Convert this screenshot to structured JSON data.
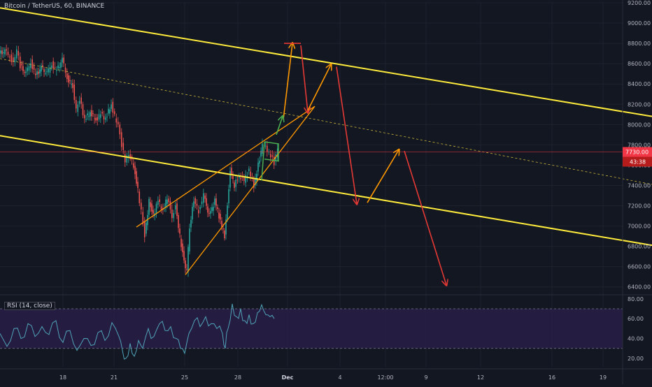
{
  "header": {
    "title": "Bitcoin / TetherUS, 60, BINANCE"
  },
  "colors": {
    "background": "#131722",
    "grid": "#1e222d",
    "channel": "#ffeb3b",
    "midline": "#c9b53a",
    "wedge": "#ff9800",
    "flag": "#4caf50",
    "bearish_arrow": "#e53935",
    "bullish_arrow": "#ff9800",
    "candle_up": "#26a69a",
    "candle_down": "#ef5350",
    "rsi_line": "#4fa3b8",
    "rsi_band": "#2a1f4a",
    "price_line": "#f23645"
  },
  "chart_data": [
    {
      "type": "candlestick",
      "title": "Bitcoin / TetherUS, 60, BINANCE",
      "y_axis": {
        "ticks": [
          "9200.00",
          "9000.00",
          "8800.00",
          "8600.00",
          "8400.00",
          "8200.00",
          "8000.00",
          "7800.00",
          "7600.00",
          "7400.00",
          "7200.00",
          "7000.00",
          "6800.00",
          "6600.00",
          "6400.00"
        ],
        "ylim": [
          6350,
          9200
        ]
      },
      "x_axis": {
        "ticks": [
          "18",
          "21",
          "25",
          "28",
          "Dec",
          "4",
          "12:00",
          "9",
          "12",
          "16",
          "19"
        ]
      },
      "last_price": {
        "value": "7730.00",
        "countdown": "43:38"
      },
      "series_path": [
        [
          0,
          8700
        ],
        [
          8,
          8720
        ],
        [
          15,
          8680
        ],
        [
          20,
          8600
        ],
        [
          25,
          8750
        ],
        [
          30,
          8580
        ],
        [
          38,
          8500
        ],
        [
          45,
          8620
        ],
        [
          52,
          8480
        ],
        [
          60,
          8560
        ],
        [
          68,
          8500
        ],
        [
          75,
          8600
        ],
        [
          82,
          8530
        ],
        [
          90,
          8640
        ],
        [
          97,
          8460
        ],
        [
          105,
          8380
        ],
        [
          110,
          8150
        ],
        [
          115,
          8250
        ],
        [
          122,
          8050
        ],
        [
          130,
          8120
        ],
        [
          138,
          8050
        ],
        [
          145,
          8100
        ],
        [
          152,
          8060
        ],
        [
          160,
          8200
        ],
        [
          165,
          8080
        ],
        [
          170,
          8000
        ],
        [
          175,
          7800
        ],
        [
          180,
          7650
        ],
        [
          185,
          7700
        ],
        [
          192,
          7600
        ],
        [
          198,
          7350
        ],
        [
          203,
          7150
        ],
        [
          208,
          6900
        ],
        [
          214,
          7250
        ],
        [
          220,
          7100
        ],
        [
          227,
          7250
        ],
        [
          234,
          7150
        ],
        [
          240,
          7280
        ],
        [
          247,
          7100
        ],
        [
          252,
          7200
        ],
        [
          258,
          6900
        ],
        [
          264,
          6650
        ],
        [
          268,
          6550
        ],
        [
          272,
          7000
        ],
        [
          278,
          7250
        ],
        [
          285,
          7150
        ],
        [
          292,
          7300
        ],
        [
          300,
          7100
        ],
        [
          308,
          7250
        ],
        [
          316,
          7050
        ],
        [
          322,
          6900
        ],
        [
          326,
          7200
        ],
        [
          330,
          7550
        ],
        [
          336,
          7400
        ],
        [
          343,
          7500
        ],
        [
          350,
          7450
        ],
        [
          357,
          7550
        ],
        [
          364,
          7400
        ],
        [
          370,
          7600
        ],
        [
          376,
          7800
        ],
        [
          383,
          7750
        ],
        [
          388,
          7700
        ],
        [
          393,
          7620
        ],
        [
          398,
          7760
        ]
      ],
      "lines": {
        "channel_upper": [
          [
            0,
            9150
          ],
          [
            932,
            8080
          ]
        ],
        "channel_lower": [
          [
            0,
            7890
          ],
          [
            932,
            6810
          ]
        ],
        "channel_mid": [
          [
            0,
            8650
          ],
          [
            932,
            7410
          ]
        ],
        "wedge_upper": [
          [
            195,
            6990
          ],
          [
            450,
            8180
          ]
        ],
        "wedge_lower": [
          [
            265,
            6520
          ],
          [
            450,
            8180
          ]
        ],
        "flag": [
          [
            378,
            7830
          ],
          [
            398,
            7810
          ],
          [
            398,
            7640
          ],
          [
            378,
            7660
          ]
        ]
      },
      "projections": [
        {
          "kind": "bullish",
          "from": [
            405,
            8050
          ],
          "to": [
            418,
            8800
          ]
        },
        {
          "kind": "bear-target",
          "from": [
            406,
            8800
          ],
          "to": [
            430,
            8800
          ]
        },
        {
          "kind": "bearish",
          "from": [
            430,
            8780
          ],
          "to": [
            440,
            8120
          ]
        },
        {
          "kind": "bullish",
          "from": [
            440,
            8140
          ],
          "to": [
            473,
            8590
          ]
        },
        {
          "kind": "bearish",
          "from": [
            481,
            8570
          ],
          "to": [
            510,
            7220
          ]
        },
        {
          "kind": "bullish",
          "from": [
            525,
            7230
          ],
          "to": [
            570,
            7750
          ]
        },
        {
          "kind": "bearish",
          "from": [
            578,
            7740
          ],
          "to": [
            638,
            6420
          ]
        },
        {
          "kind": "bullish-small",
          "from": [
            395,
            7900
          ],
          "to": [
            404,
            8080
          ]
        }
      ]
    },
    {
      "type": "line",
      "title": "RSI (14, close)",
      "y_axis": {
        "ticks": [
          "80.00",
          "60.00",
          "40.00",
          "20.00"
        ],
        "ylim": [
          15,
          82
        ]
      },
      "bands": {
        "upper": 70,
        "lower": 30
      },
      "series": [
        {
          "name": "RSI (14, close)",
          "values": [
            [
              0,
              45
            ],
            [
              10,
              32
            ],
            [
              20,
              50
            ],
            [
              30,
              40
            ],
            [
              40,
              55
            ],
            [
              50,
              42
            ],
            [
              60,
              52
            ],
            [
              70,
              44
            ],
            [
              80,
              58
            ],
            [
              90,
              36
            ],
            [
              100,
              48
            ],
            [
              110,
              28
            ],
            [
              120,
              40
            ],
            [
              130,
              33
            ],
            [
              140,
              46
            ],
            [
              150,
              38
            ],
            [
              160,
              56
            ],
            [
              170,
              42
            ],
            [
              175,
              28
            ],
            [
              180,
              20
            ],
            [
              186,
              35
            ],
            [
              192,
              22
            ],
            [
              198,
              38
            ],
            [
              204,
              30
            ],
            [
              212,
              50
            ],
            [
              220,
              42
            ],
            [
              228,
              55
            ],
            [
              236,
              48
            ],
            [
              244,
              52
            ],
            [
              252,
              40
            ],
            [
              258,
              30
            ],
            [
              264,
              25
            ],
            [
              270,
              45
            ],
            [
              278,
              58
            ],
            [
              286,
              52
            ],
            [
              294,
              62
            ],
            [
              302,
              55
            ],
            [
              310,
              50
            ],
            [
              318,
              45
            ],
            [
              322,
              30
            ],
            [
              326,
              50
            ],
            [
              332,
              75
            ],
            [
              338,
              62
            ],
            [
              344,
              70
            ],
            [
              350,
              58
            ],
            [
              356,
              64
            ],
            [
              362,
              55
            ],
            [
              368,
              66
            ],
            [
              374,
              74
            ],
            [
              380,
              64
            ],
            [
              386,
              62
            ],
            [
              392,
              60
            ]
          ]
        }
      ]
    }
  ]
}
